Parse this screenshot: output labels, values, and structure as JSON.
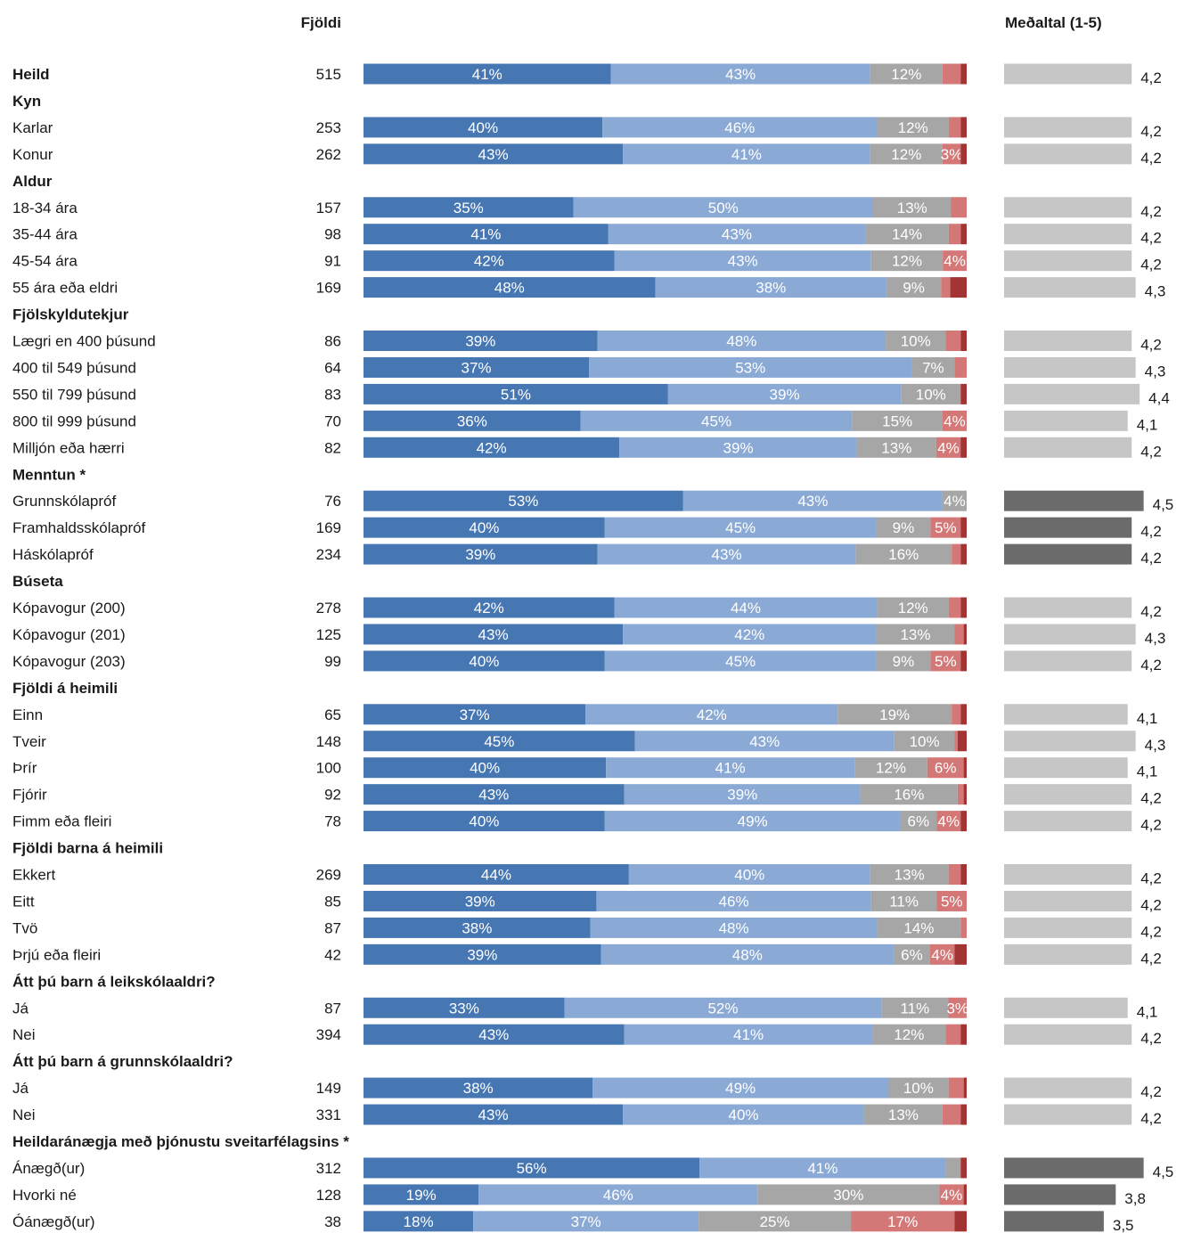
{
  "chart_data": {
    "type": "bar",
    "stacked": true,
    "orientation": "horizontal",
    "column_headers": {
      "count": "Fjöldi",
      "mean": "Meðaltal (1-5)"
    },
    "colors": {
      "segments": [
        "#4677b3",
        "#8aaad5",
        "#a6a6a6",
        "#d47777",
        "#a23434"
      ],
      "mean_bar": "#c6c6c6",
      "mean_bar_significant": "#6b6b6b"
    },
    "mean_scale": [
      1,
      5
    ],
    "rows": [
      {
        "label": "Heild",
        "bold": true,
        "count": "515",
        "segments": [
          41,
          43,
          12,
          3,
          1
        ],
        "segment_labels": [
          "41%",
          "43%",
          "12%",
          "",
          ""
        ],
        "mean": 4.2,
        "mean_label": "4,2"
      },
      {
        "label": "Kyn",
        "header": true
      },
      {
        "label": "Karlar",
        "count": "253",
        "segments": [
          40,
          46,
          12,
          2,
          1
        ],
        "segment_labels": [
          "40%",
          "46%",
          "12%",
          "",
          ""
        ],
        "mean": 4.2,
        "mean_label": "4,2"
      },
      {
        "label": "Konur",
        "count": "262",
        "segments": [
          43,
          41,
          12,
          3,
          1
        ],
        "segment_labels": [
          "43%",
          "41%",
          "12%",
          "3%",
          ""
        ],
        "mean": 4.2,
        "mean_label": "4,2"
      },
      {
        "label": "Aldur",
        "header": true
      },
      {
        "label": "18-34 ára",
        "count": "157",
        "segments": [
          35,
          50,
          13,
          2.6,
          0
        ],
        "segment_labels": [
          "35%",
          "50%",
          "13%",
          "",
          ""
        ],
        "mean": 4.2,
        "mean_label": "4,2"
      },
      {
        "label": "35-44 ára",
        "count": "98",
        "segments": [
          41,
          43,
          14,
          2,
          1
        ],
        "segment_labels": [
          "41%",
          "43%",
          "14%",
          "",
          ""
        ],
        "mean": 4.2,
        "mean_label": "4,2"
      },
      {
        "label": "45-54 ára",
        "count": "91",
        "segments": [
          42,
          43,
          12,
          4,
          0
        ],
        "segment_labels": [
          "42%",
          "43%",
          "12%",
          "4%",
          ""
        ],
        "mean": 4.2,
        "mean_label": "4,2"
      },
      {
        "label": "55 ára eða eldri",
        "count": "169",
        "segments": [
          48,
          38,
          9,
          1.5,
          2.7
        ],
        "segment_labels": [
          "48%",
          "38%",
          "9%",
          "",
          ""
        ],
        "mean": 4.3,
        "mean_label": "4,3"
      },
      {
        "label": "Fjölskyldutekjur",
        "header": true
      },
      {
        "label": "Lægri en 400 þúsund",
        "count": "86",
        "segments": [
          39,
          48,
          10,
          2.5,
          1
        ],
        "segment_labels": [
          "39%",
          "48%",
          "10%",
          "",
          ""
        ],
        "mean": 4.2,
        "mean_label": "4,2"
      },
      {
        "label": "400 til 549 þúsund",
        "count": "64",
        "segments": [
          37,
          53,
          7,
          2,
          0
        ],
        "segment_labels": [
          "37%",
          "53%",
          "7%",
          "",
          ""
        ],
        "mean": 4.3,
        "mean_label": "4,3"
      },
      {
        "label": "550 til 799 þúsund",
        "count": "83",
        "segments": [
          51,
          39,
          10,
          0,
          1
        ],
        "segment_labels": [
          "51%",
          "39%",
          "10%",
          "",
          ""
        ],
        "mean": 4.4,
        "mean_label": "4,4"
      },
      {
        "label": "800 til 999 þúsund",
        "count": "70",
        "segments": [
          36,
          45,
          15,
          4,
          0
        ],
        "segment_labels": [
          "36%",
          "45%",
          "15%",
          "4%",
          ""
        ],
        "mean": 4.1,
        "mean_label": "4,1"
      },
      {
        "label": "Milljón eða hærri",
        "count": "82",
        "segments": [
          42,
          39,
          13,
          4,
          1
        ],
        "segment_labels": [
          "42%",
          "39%",
          "13%",
          "4%",
          ""
        ],
        "mean": 4.2,
        "mean_label": "4,2"
      },
      {
        "label": "Menntun *",
        "header": true
      },
      {
        "label": "Grunnskólapróf",
        "count": "76",
        "segments": [
          53,
          43,
          4,
          0,
          0
        ],
        "segment_labels": [
          "53%",
          "43%",
          "4%",
          "",
          ""
        ],
        "mean": 4.5,
        "mean_label": "4,5",
        "significant": true
      },
      {
        "label": "Framhaldsskólapróf",
        "count": "169",
        "segments": [
          40,
          45,
          9,
          5,
          1
        ],
        "segment_labels": [
          "40%",
          "45%",
          "9%",
          "5%",
          ""
        ],
        "mean": 4.2,
        "mean_label": "4,2",
        "significant": true
      },
      {
        "label": "Háskólapróf",
        "count": "234",
        "segments": [
          39,
          43,
          16,
          1.5,
          1
        ],
        "segment_labels": [
          "39%",
          "43%",
          "16%",
          "",
          ""
        ],
        "mean": 4.2,
        "mean_label": "4,2",
        "significant": true
      },
      {
        "label": "Búseta",
        "header": true
      },
      {
        "label": "Kópavogur (200)",
        "count": "278",
        "segments": [
          42,
          44,
          12,
          2,
          1
        ],
        "segment_labels": [
          "42%",
          "44%",
          "12%",
          "",
          ""
        ],
        "mean": 4.2,
        "mean_label": "4,2"
      },
      {
        "label": "Kópavogur (201)",
        "count": "125",
        "segments": [
          43,
          42,
          13,
          1.5,
          0.5
        ],
        "segment_labels": [
          "43%",
          "42%",
          "13%",
          "",
          ""
        ],
        "mean": 4.3,
        "mean_label": "4,3"
      },
      {
        "label": "Kópavogur (203)",
        "count": "99",
        "segments": [
          40,
          45,
          9,
          5,
          1
        ],
        "segment_labels": [
          "40%",
          "45%",
          "9%",
          "5%",
          ""
        ],
        "mean": 4.2,
        "mean_label": "4,2"
      },
      {
        "label": "Fjöldi á heimili",
        "header": true
      },
      {
        "label": "Einn",
        "count": "65",
        "segments": [
          37,
          42,
          19,
          1.5,
          1
        ],
        "segment_labels": [
          "37%",
          "42%",
          "19%",
          "",
          ""
        ],
        "mean": 4.1,
        "mean_label": "4,1"
      },
      {
        "label": "Tveir",
        "count": "148",
        "segments": [
          45,
          43,
          10,
          0.5,
          1.5
        ],
        "segment_labels": [
          "45%",
          "43%",
          "10%",
          "",
          ""
        ],
        "mean": 4.3,
        "mean_label": "4,3"
      },
      {
        "label": "Þrír",
        "count": "100",
        "segments": [
          40,
          41,
          12,
          6,
          0.5
        ],
        "segment_labels": [
          "40%",
          "41%",
          "12%",
          "6%",
          ""
        ],
        "mean": 4.1,
        "mean_label": "4,1"
      },
      {
        "label": "Fjórir",
        "count": "92",
        "segments": [
          43,
          39,
          16,
          1,
          0.5
        ],
        "segment_labels": [
          "43%",
          "39%",
          "16%",
          "",
          ""
        ],
        "mean": 4.2,
        "mean_label": "4,2"
      },
      {
        "label": "Fimm eða fleiri",
        "count": "78",
        "segments": [
          40,
          49,
          6,
          4,
          1
        ],
        "segment_labels": [
          "40%",
          "49%",
          "6%",
          "4%",
          ""
        ],
        "mean": 4.2,
        "mean_label": "4,2"
      },
      {
        "label": "Fjöldi barna á heimili",
        "header": true
      },
      {
        "label": "Ekkert",
        "count": "269",
        "segments": [
          44,
          40,
          13,
          2,
          1
        ],
        "segment_labels": [
          "44%",
          "40%",
          "13%",
          "",
          ""
        ],
        "mean": 4.2,
        "mean_label": "4,2"
      },
      {
        "label": "Eitt",
        "count": "85",
        "segments": [
          39,
          46,
          11,
          5,
          0
        ],
        "segment_labels": [
          "39%",
          "46%",
          "11%",
          "5%",
          ""
        ],
        "mean": 4.2,
        "mean_label": "4,2"
      },
      {
        "label": "Tvö",
        "count": "87",
        "segments": [
          38,
          48,
          14,
          1,
          0
        ],
        "segment_labels": [
          "38%",
          "48%",
          "14%",
          "",
          ""
        ],
        "mean": 4.2,
        "mean_label": "4,2"
      },
      {
        "label": "Þrjú eða fleiri",
        "count": "42",
        "segments": [
          39,
          48,
          6,
          4,
          2
        ],
        "segment_labels": [
          "39%",
          "48%",
          "6%",
          "4%",
          ""
        ],
        "mean": 4.2,
        "mean_label": "4,2"
      },
      {
        "label": "Átt þú barn á leikskólaaldri?",
        "header": true
      },
      {
        "label": "Já",
        "count": "87",
        "segments": [
          33,
          52,
          11,
          3,
          0
        ],
        "segment_labels": [
          "33%",
          "52%",
          "11%",
          "3%",
          ""
        ],
        "mean": 4.1,
        "mean_label": "4,1"
      },
      {
        "label": "Nei",
        "count": "394",
        "segments": [
          43,
          41,
          12,
          2.5,
          1
        ],
        "segment_labels": [
          "43%",
          "41%",
          "12%",
          "",
          ""
        ],
        "mean": 4.2,
        "mean_label": "4,2"
      },
      {
        "label": "Átt þú barn á grunnskólaaldri?",
        "header": true
      },
      {
        "label": "Já",
        "count": "149",
        "segments": [
          38,
          49,
          10,
          2.5,
          0.5
        ],
        "segment_labels": [
          "38%",
          "49%",
          "10%",
          "",
          ""
        ],
        "mean": 4.2,
        "mean_label": "4,2"
      },
      {
        "label": "Nei",
        "count": "331",
        "segments": [
          43,
          40,
          13,
          3,
          1
        ],
        "segment_labels": [
          "43%",
          "40%",
          "13%",
          "",
          ""
        ],
        "mean": 4.2,
        "mean_label": "4,2"
      },
      {
        "label": "Heildaránægja með þjónustu sveitarfélagsins *",
        "header": true
      },
      {
        "label": "Ánægð(ur)",
        "count": "312",
        "segments": [
          56,
          41,
          2.5,
          0,
          1
        ],
        "segment_labels": [
          "56%",
          "41%",
          "",
          "",
          ""
        ],
        "mean": 4.5,
        "mean_label": "4,5",
        "significant": true
      },
      {
        "label": "Hvorki né",
        "count": "128",
        "segments": [
          19,
          46,
          30,
          4,
          0.5
        ],
        "segment_labels": [
          "19%",
          "46%",
          "30%",
          "4%",
          ""
        ],
        "mean": 3.8,
        "mean_label": "3,8",
        "significant": true
      },
      {
        "label": "Óánægð(ur)",
        "count": "38",
        "segments": [
          18,
          37,
          25,
          17,
          2
        ],
        "segment_labels": [
          "18%",
          "37%",
          "25%",
          "17%",
          ""
        ],
        "mean": 3.5,
        "mean_label": "3,5",
        "significant": true
      }
    ]
  }
}
